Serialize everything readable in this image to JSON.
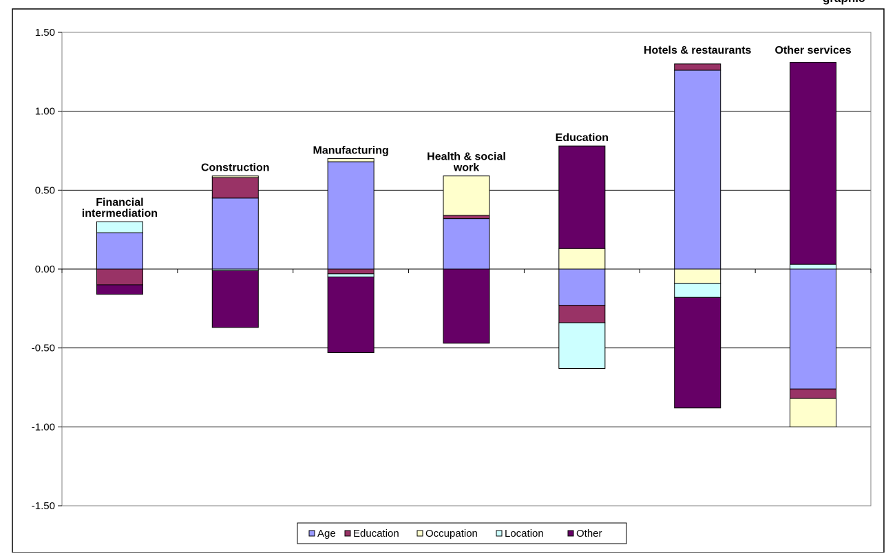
{
  "title_fragment": "graphic",
  "chart_data": {
    "type": "bar",
    "stacked": true,
    "categories": [
      "Financial intermediation",
      "Construction",
      "Manufacturing",
      "Health & social work",
      "Education",
      "Hotels & restaurants",
      "Other services"
    ],
    "category_label_lines": [
      [
        "Financial",
        "intermediation"
      ],
      [
        "Construction"
      ],
      [
        "Manufacturing"
      ],
      [
        "Health & social",
        "work"
      ],
      [
        "Education"
      ],
      [
        "Hotels & restaurants"
      ],
      [
        "Other services"
      ]
    ],
    "series": [
      {
        "name": "Age",
        "color": "#9999ff",
        "values": [
          0.23,
          0.45,
          0.68,
          0.32,
          -0.23,
          1.26,
          -0.76
        ]
      },
      {
        "name": "Education",
        "color": "#993366",
        "values": [
          -0.1,
          0.13,
          -0.03,
          0.02,
          -0.11,
          0.04,
          -0.06
        ]
      },
      {
        "name": "Occupation",
        "color": "#ffffcc",
        "values": [
          0.0,
          0.01,
          0.02,
          0.25,
          0.13,
          -0.09,
          -0.18
        ]
      },
      {
        "name": "Location",
        "color": "#ccffff",
        "values": [
          0.07,
          -0.01,
          -0.02,
          0.0,
          -0.29,
          -0.09,
          0.03
        ]
      },
      {
        "name": "Other",
        "color": "#660066",
        "values": [
          -0.06,
          -0.36,
          -0.48,
          -0.47,
          0.65,
          -0.7,
          1.28
        ]
      }
    ],
    "ylim": [
      -1.5,
      1.5
    ],
    "yticks": [
      -1.5,
      -1.0,
      -0.5,
      0.0,
      0.5,
      1.0,
      1.5
    ],
    "ytick_labels": [
      "-1.50",
      "-1.00",
      "-0.50",
      "0.00",
      "0.50",
      "1.00",
      "1.50"
    ],
    "grid": true,
    "legend": "bottom-center"
  }
}
